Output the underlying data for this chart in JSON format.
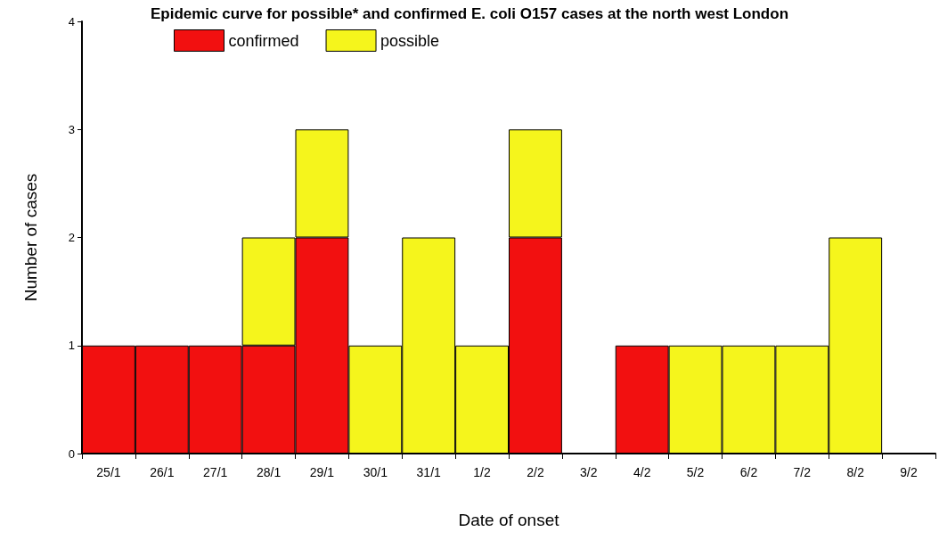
{
  "chart_data": {
    "type": "bar",
    "title": "Epidemic curve for possible* and confirmed E. coli O157 cases at the north west London",
    "xlabel": "Date of onset",
    "ylabel": "Number of cases",
    "categories": [
      "25/1",
      "26/1",
      "27/1",
      "28/1",
      "29/1",
      "30/1",
      "31/1",
      "1/2",
      "2/2",
      "3/2",
      "4/2",
      "5/2",
      "6/2",
      "7/2",
      "8/2",
      "9/2"
    ],
    "series": [
      {
        "name": "confirmed",
        "color": "#f21010",
        "values": [
          1,
          1,
          1,
          1,
          2,
          0,
          0,
          0,
          2,
          0,
          1,
          0,
          0,
          0,
          0,
          0
        ]
      },
      {
        "name": "possible",
        "color": "#f5f51c",
        "values": [
          0,
          0,
          0,
          1,
          1,
          1,
          2,
          1,
          1,
          0,
          0,
          1,
          1,
          1,
          2,
          0
        ]
      }
    ],
    "stacked": true,
    "ylim": [
      0,
      4
    ],
    "yticks": [
      0,
      1,
      2,
      3,
      4
    ],
    "grid": false,
    "legend": "top left"
  }
}
